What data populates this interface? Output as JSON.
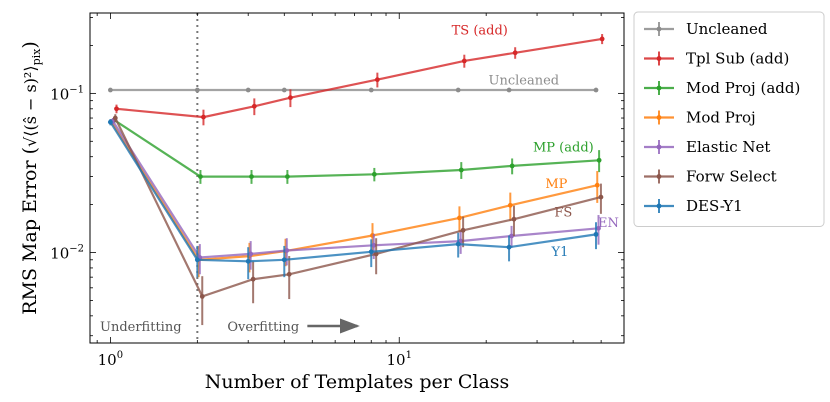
{
  "chart_data": {
    "type": "line",
    "xscale": "log",
    "yscale": "log",
    "xlabel": "Number of Templates per Class",
    "ylabel_prefix": "RMS Map Error",
    "ylabel_math": "√⟨(ŝ − s)²⟩",
    "ylabel_sub": "pix",
    "xlim": [
      0.85,
      60
    ],
    "ylim": [
      0.0027,
      0.32
    ],
    "xticks": [
      {
        "value": 1,
        "base": "10",
        "exp": "0"
      },
      {
        "value": 10,
        "base": "10",
        "exp": "1"
      }
    ],
    "yticks": [
      {
        "value": 0.01,
        "base": "10",
        "exp": "−2"
      },
      {
        "value": 0.1,
        "base": "10",
        "exp": "−1"
      }
    ],
    "divider_x": 2,
    "annotations": {
      "underfitting": "Underfitting",
      "overfitting": "Overfitting",
      "overfitting_arrow": "right"
    },
    "series": [
      {
        "name": "Uncleaned",
        "label": "Uncleaned",
        "label_at": [
          27,
          0.114
        ],
        "color": "#8c8c8c",
        "x": [
          1.0,
          2.0,
          3.0,
          4.0,
          8.0,
          16.0,
          24.0,
          48.0
        ],
        "y": [
          0.105,
          0.105,
          0.105,
          0.105,
          0.105,
          0.105,
          0.105,
          0.105
        ],
        "err": [
          0,
          0,
          0,
          0,
          0,
          0,
          0,
          0
        ]
      },
      {
        "name": "Tpl Sub (add)",
        "label": "TS (add)",
        "label_at": [
          19,
          0.235
        ],
        "color": "#d62728",
        "x": [
          1.05,
          2.1,
          3.15,
          4.2,
          8.4,
          16.8,
          25.2,
          50.4
        ],
        "y": [
          0.08,
          0.071,
          0.083,
          0.094,
          0.122,
          0.16,
          0.18,
          0.22
        ],
        "err": [
          0.005,
          0.008,
          0.01,
          0.012,
          0.013,
          0.015,
          0.015,
          0.016
        ]
      },
      {
        "name": "Mod Proj (add)",
        "label": "MP (add)",
        "label_at": [
          37,
          0.043
        ],
        "color": "#2ca02c",
        "x": [
          1.03,
          2.05,
          3.08,
          4.1,
          8.2,
          16.4,
          24.6,
          49.2
        ],
        "y": [
          0.068,
          0.03,
          0.03,
          0.03,
          0.031,
          0.033,
          0.035,
          0.038
        ],
        "err": [
          0.003,
          0.003,
          0.003,
          0.003,
          0.003,
          0.004,
          0.004,
          0.006
        ]
      },
      {
        "name": "Mod Proj",
        "label": "MP",
        "label_at": [
          35,
          0.0255
        ],
        "color": "#ff7f0e",
        "x": [
          1.01,
          2.02,
          3.03,
          4.04,
          8.08,
          16.16,
          24.24,
          48.48
        ],
        "y": [
          0.066,
          0.009,
          0.0095,
          0.0102,
          0.0128,
          0.0165,
          0.0198,
          0.0265
        ],
        "err": [
          0.003,
          0.002,
          0.002,
          0.002,
          0.0025,
          0.003,
          0.004,
          0.006
        ]
      },
      {
        "name": "Elastic Net",
        "label": "EN",
        "label_at": [
          53,
          0.0145
        ],
        "color": "#9467bd",
        "x": [
          1.02,
          2.04,
          3.06,
          4.08,
          8.16,
          16.32,
          24.48,
          48.96
        ],
        "y": [
          0.067,
          0.0093,
          0.0098,
          0.0103,
          0.0111,
          0.0118,
          0.0127,
          0.0142
        ],
        "err": [
          0.003,
          0.002,
          0.002,
          0.002,
          0.002,
          0.002,
          0.002,
          0.003
        ]
      },
      {
        "name": "Forw Select",
        "label": "FS",
        "label_at": [
          37,
          0.0168
        ],
        "color": "#8c564b",
        "x": [
          1.04,
          2.08,
          3.12,
          4.16,
          8.32,
          16.64,
          24.96,
          49.92
        ],
        "y": [
          0.07,
          0.0053,
          0.0068,
          0.0073,
          0.0098,
          0.0138,
          0.0162,
          0.0223
        ],
        "err": [
          0.004,
          0.0018,
          0.002,
          0.0022,
          0.0025,
          0.003,
          0.0035,
          0.0048
        ]
      },
      {
        "name": "DES-Y1",
        "label": "Y1",
        "label_at": [
          36,
          0.0095
        ],
        "color": "#1f77b4",
        "x": [
          1.0,
          2.0,
          3.0,
          4.0,
          8.0,
          16.0,
          24.0,
          48.0
        ],
        "y": [
          0.066,
          0.009,
          0.0088,
          0.009,
          0.0101,
          0.0113,
          0.0108,
          0.013
        ],
        "err": [
          0.003,
          0.002,
          0.002,
          0.002,
          0.002,
          0.002,
          0.002,
          0.0025
        ]
      }
    ]
  }
}
